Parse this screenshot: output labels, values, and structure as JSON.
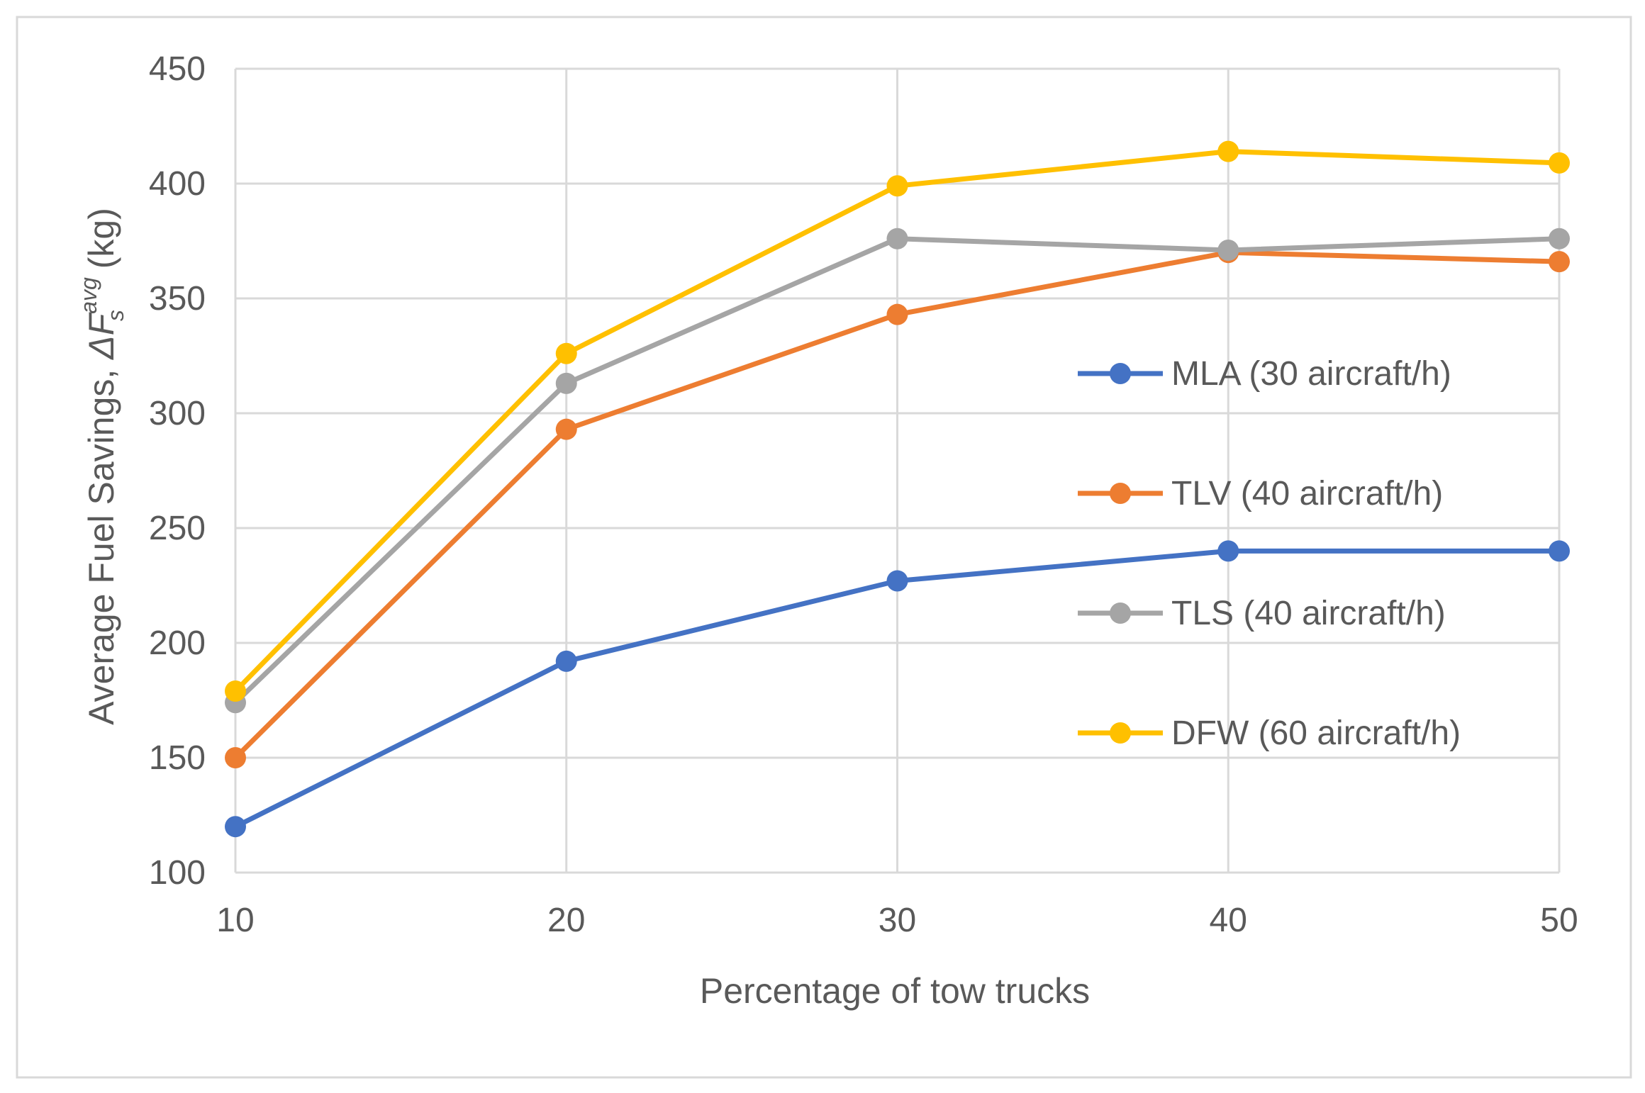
{
  "chart_data": {
    "type": "line",
    "title": "",
    "xlabel": "Percentage of tow trucks",
    "ylabel": {
      "prefix": "Average Fuel Savings, ",
      "symbol": "ΔF",
      "subscript": "s",
      "superscript": "avg",
      "suffix": " (kg)"
    },
    "x": [
      10,
      20,
      30,
      40,
      50
    ],
    "xlim": [
      10,
      50
    ],
    "ylim": [
      100,
      450
    ],
    "x_ticks": [
      "10",
      "20",
      "30",
      "40",
      "50"
    ],
    "y_ticks": [
      "100",
      "150",
      "200",
      "250",
      "300",
      "350",
      "400",
      "450"
    ],
    "grid": true,
    "legend_position": "right",
    "series": [
      {
        "name": "MLA (30 aircraft/h)",
        "color": "#4472C4",
        "values": [
          120,
          192,
          227,
          240,
          240
        ]
      },
      {
        "name": "TLV (40 aircraft/h)",
        "color": "#ED7D31",
        "values": [
          150,
          293,
          343,
          370,
          366
        ]
      },
      {
        "name": "TLS (40 aircraft/h)",
        "color": "#A5A5A5",
        "values": [
          174,
          313,
          376,
          371,
          376
        ]
      },
      {
        "name": "DFW (60 aircraft/h)",
        "color": "#FFC000",
        "values": [
          179,
          326,
          399,
          414,
          409
        ]
      }
    ],
    "colors": {
      "grid": "#D9D9D9",
      "text": "#595959",
      "border": "#D9D9D9"
    }
  }
}
